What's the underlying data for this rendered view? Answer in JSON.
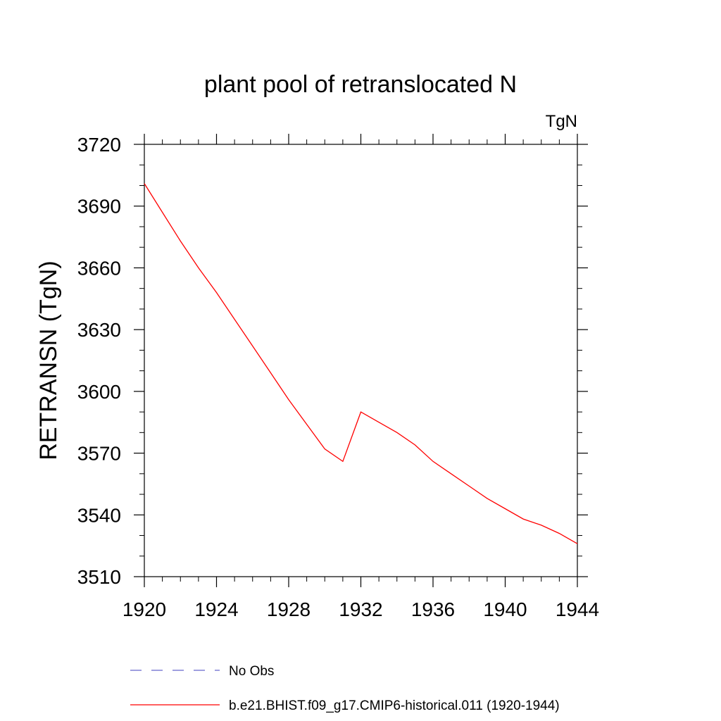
{
  "chart_data": {
    "type": "line",
    "title": "plant pool of retranslocated N",
    "units_label": "TgN",
    "ylabel": "RETRANSN  (TgN)",
    "xlabel": "",
    "xlim": [
      1920,
      1944
    ],
    "ylim": [
      3510,
      3720
    ],
    "x_ticks": [
      1920,
      1924,
      1928,
      1932,
      1936,
      1940,
      1944
    ],
    "y_ticks": [
      3510,
      3540,
      3570,
      3600,
      3630,
      3660,
      3690,
      3720
    ],
    "grid": false,
    "legend_position": "bottom",
    "series": [
      {
        "name": "No Obs",
        "color": "#6666cc",
        "style": "dashed",
        "x": [],
        "y": []
      },
      {
        "name": "b.e21.BHIST.f09_g17.CMIP6-historical.011 (1920-1944)",
        "color": "#ff0000",
        "style": "solid",
        "x": [
          1920,
          1921,
          1922,
          1923,
          1924,
          1925,
          1926,
          1927,
          1928,
          1929,
          1930,
          1931,
          1932,
          1933,
          1934,
          1935,
          1936,
          1937,
          1938,
          1939,
          1940,
          1941,
          1942,
          1943,
          1944
        ],
        "y": [
          3701,
          3687,
          3673,
          3660,
          3648,
          3635,
          3622,
          3609,
          3596,
          3584,
          3572,
          3566,
          3590,
          3585,
          3580,
          3574,
          3566,
          3560,
          3554,
          3548,
          3543,
          3538,
          3535,
          3531,
          3526
        ]
      }
    ]
  }
}
